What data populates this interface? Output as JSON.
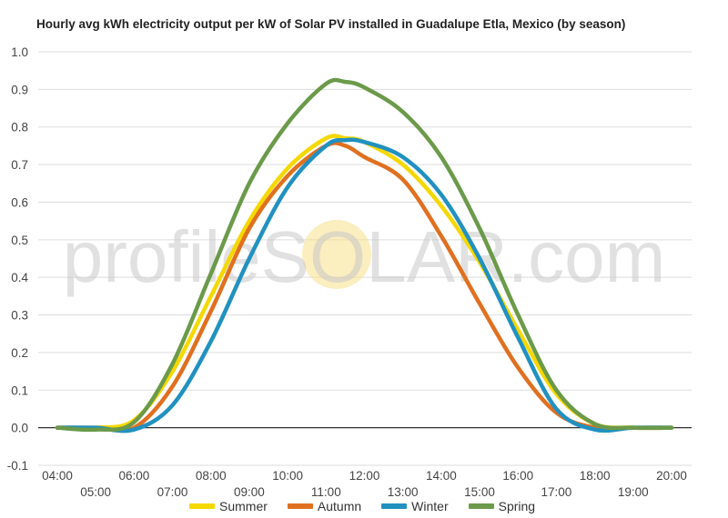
{
  "chart_data": {
    "type": "line",
    "title": "Hourly avg kWh electricity output per kW of Solar PV installed in Guadalupe Etla, Mexico (by season)",
    "xlabel": "",
    "ylabel": "",
    "watermark": "profileSOLAR.com",
    "x": [
      "04:00",
      "05:00",
      "06:00",
      "07:00",
      "08:00",
      "09:00",
      "10:00",
      "11:00",
      "11:30",
      "12:00",
      "13:00",
      "14:00",
      "15:00",
      "16:00",
      "17:00",
      "18:00",
      "19:00",
      "20:00"
    ],
    "x_tick_labels": [
      "04:00",
      "05:00",
      "06:00",
      "07:00",
      "08:00",
      "09:00",
      "10:00",
      "11:00",
      "12:00",
      "13:00",
      "14:00",
      "15:00",
      "16:00",
      "17:00",
      "18:00",
      "19:00",
      "20:00"
    ],
    "ylim": [
      -0.1,
      1.0
    ],
    "y_ticks": [
      "-0.1",
      "0.0",
      "0.1",
      "0.2",
      "0.3",
      "0.4",
      "0.5",
      "0.6",
      "0.7",
      "0.8",
      "0.9",
      "1.0"
    ],
    "grid": true,
    "legend_position": "bottom",
    "series": [
      {
        "name": "Summer",
        "color": "#f5d800",
        "values": [
          0.0,
          0.0,
          0.02,
          0.15,
          0.35,
          0.55,
          0.69,
          0.77,
          0.77,
          0.76,
          0.7,
          0.59,
          0.44,
          0.26,
          0.09,
          0.01,
          0.0,
          0.0
        ]
      },
      {
        "name": "Autumn",
        "color": "#e07020",
        "values": [
          0.0,
          0.0,
          0.0,
          0.11,
          0.31,
          0.53,
          0.67,
          0.75,
          0.75,
          0.72,
          0.66,
          0.51,
          0.33,
          0.16,
          0.04,
          0.0,
          0.0,
          0.0
        ]
      },
      {
        "name": "Winter",
        "color": "#2191c0",
        "values": [
          0.0,
          0.0,
          -0.005,
          0.06,
          0.23,
          0.45,
          0.64,
          0.75,
          0.765,
          0.76,
          0.72,
          0.62,
          0.45,
          0.24,
          0.05,
          -0.005,
          0.0,
          0.0
        ]
      },
      {
        "name": "Spring",
        "color": "#6b9a4a",
        "values": [
          0.0,
          -0.005,
          0.015,
          0.17,
          0.41,
          0.65,
          0.81,
          0.915,
          0.92,
          0.905,
          0.84,
          0.72,
          0.53,
          0.3,
          0.1,
          0.01,
          0.0,
          0.0
        ]
      }
    ]
  }
}
